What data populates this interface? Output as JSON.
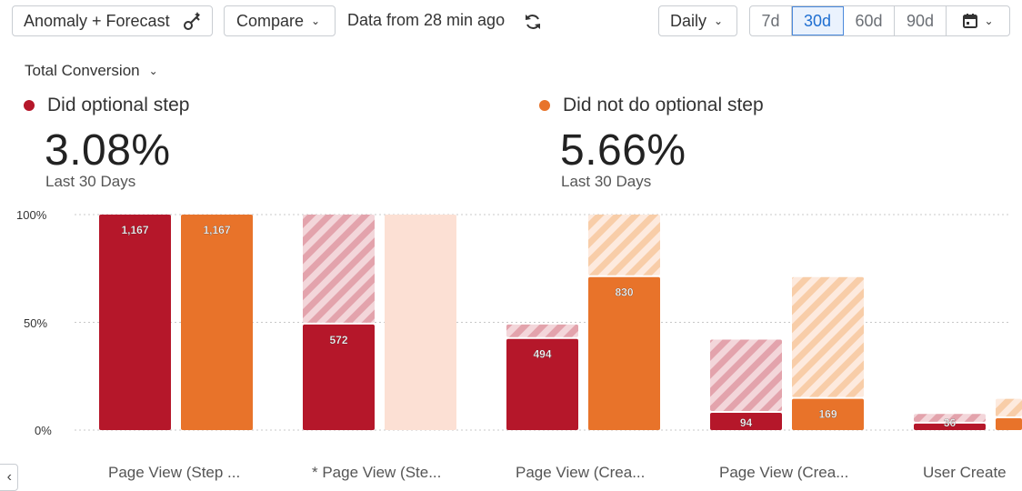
{
  "toolbar": {
    "anomaly_label": "Anomaly + Forecast",
    "compare_label": "Compare",
    "data_freshness": "Data from 28 min ago",
    "interval_label": "Daily",
    "ranges": [
      "7d",
      "30d",
      "60d",
      "90d"
    ],
    "active_range": "30d"
  },
  "metric": {
    "label": "Total Conversion"
  },
  "segments": [
    {
      "name": "Did optional step",
      "value": "3.08%",
      "period": "Last 30 Days",
      "color": "#b5172a"
    },
    {
      "name": "Did not do optional step",
      "value": "5.66%",
      "period": "Last 30 Days",
      "color": "#e8732a"
    }
  ],
  "chart_data": {
    "type": "bar",
    "y_ticks": [
      "100%",
      "50%",
      "0%"
    ],
    "ylim": [
      0,
      100
    ],
    "categories": [
      "Page View (Step ...",
      "* Page View (Ste...",
      "Page View (Crea...",
      "Page View (Crea...",
      "User Create"
    ],
    "series": [
      {
        "name": "Did optional step",
        "color": "#b5172a",
        "values": [
          100,
          49,
          42.3,
          8,
          3
        ],
        "prev_values": [
          100,
          100,
          49,
          42,
          7.5
        ],
        "labels": [
          "1,167",
          "572",
          "494",
          "94",
          "36"
        ]
      },
      {
        "name": "Did not do optional step",
        "color": "#e8732a",
        "values": [
          100,
          0,
          71,
          14.5,
          5.5
        ],
        "prev_values": [
          100,
          100,
          100,
          71,
          14.5
        ],
        "labels": [
          "1,167",
          "",
          "830",
          "169",
          ""
        ]
      }
    ]
  }
}
